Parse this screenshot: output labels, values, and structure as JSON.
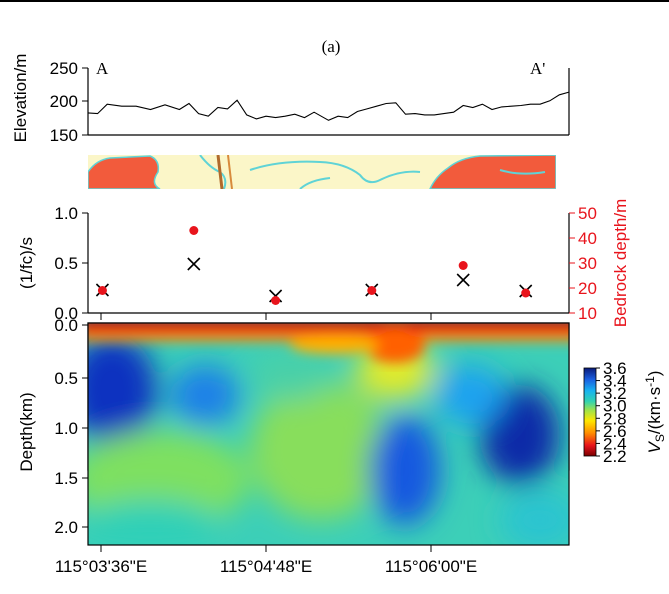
{
  "panel_label": "(a)",
  "colors": {
    "red": "#e8141c",
    "black": "#000000",
    "map_bg": "#fbf6c8",
    "map_orange": "#f25b3c",
    "map_cyan": "#5fd3d6",
    "map_brown": "#b06a2c"
  },
  "colorbar": {
    "label": "VS/(km·s-1)",
    "ticks": [
      "3.6",
      "3.4",
      "3.2",
      "3.0",
      "2.8",
      "2.6",
      "2.4",
      "2.2"
    ],
    "min": 2.2,
    "max": 3.6
  },
  "chart_data": [
    {
      "type": "line",
      "title": "",
      "ylabel": "Elevation/m",
      "ylim": [
        150,
        250
      ],
      "yticks": [
        "250",
        "200",
        "150"
      ],
      "left_label": "A",
      "right_label": "A'",
      "x": [
        0,
        0.02,
        0.04,
        0.07,
        0.1,
        0.13,
        0.16,
        0.19,
        0.21,
        0.23,
        0.25,
        0.27,
        0.29,
        0.31,
        0.33,
        0.35,
        0.37,
        0.39,
        0.41,
        0.43,
        0.45,
        0.47,
        0.5,
        0.52,
        0.54,
        0.56,
        0.58,
        0.6,
        0.62,
        0.64,
        0.66,
        0.68,
        0.7,
        0.72,
        0.74,
        0.76,
        0.78,
        0.8,
        0.82,
        0.84,
        0.86,
        0.88,
        0.9,
        0.92,
        0.94,
        0.96,
        0.98,
        1.0
      ],
      "values": [
        183,
        182,
        196,
        193,
        193,
        188,
        195,
        188,
        197,
        182,
        178,
        191,
        189,
        202,
        180,
        174,
        178,
        176,
        178,
        181,
        176,
        184,
        172,
        178,
        176,
        185,
        189,
        193,
        197,
        198,
        181,
        182,
        180,
        180,
        182,
        184,
        194,
        191,
        196,
        188,
        192,
        193,
        194,
        196,
        196,
        201,
        210,
        214
      ]
    },
    {
      "type": "scatter",
      "ylabel_left": "(1/fc)/s",
      "ylabel_right": "Bedrock depth/m",
      "ylim_left": [
        0.0,
        1.0
      ],
      "ylim_right": [
        10,
        50
      ],
      "yticks_left": [
        "1.0",
        "0.5",
        "0.0"
      ],
      "yticks_right": [
        "50",
        "40",
        "30",
        "20",
        "10"
      ],
      "series": [
        {
          "name": "1/fc",
          "marker": "x",
          "x": [
            0.03,
            0.22,
            0.39,
            0.59,
            0.78,
            0.91
          ],
          "values": [
            0.23,
            0.49,
            0.17,
            0.23,
            0.33,
            0.22
          ]
        },
        {
          "name": "Bedrock depth",
          "marker": "circle",
          "x": [
            0.03,
            0.22,
            0.39,
            0.59,
            0.78,
            0.91
          ],
          "values": [
            19,
            43,
            15,
            19,
            29,
            18
          ]
        }
      ]
    },
    {
      "type": "heatmap",
      "ylabel": "Depth(km)",
      "ylim": [
        2.2,
        0.0
      ],
      "yticks": [
        "0.0",
        "0.5",
        "1.0",
        "1.5",
        "2.0"
      ],
      "xticks": [
        "115°03'36\"E",
        "115°04'48\"E",
        "115°06'00\"E"
      ],
      "colorbar_range": [
        2.2,
        3.6
      ]
    }
  ]
}
